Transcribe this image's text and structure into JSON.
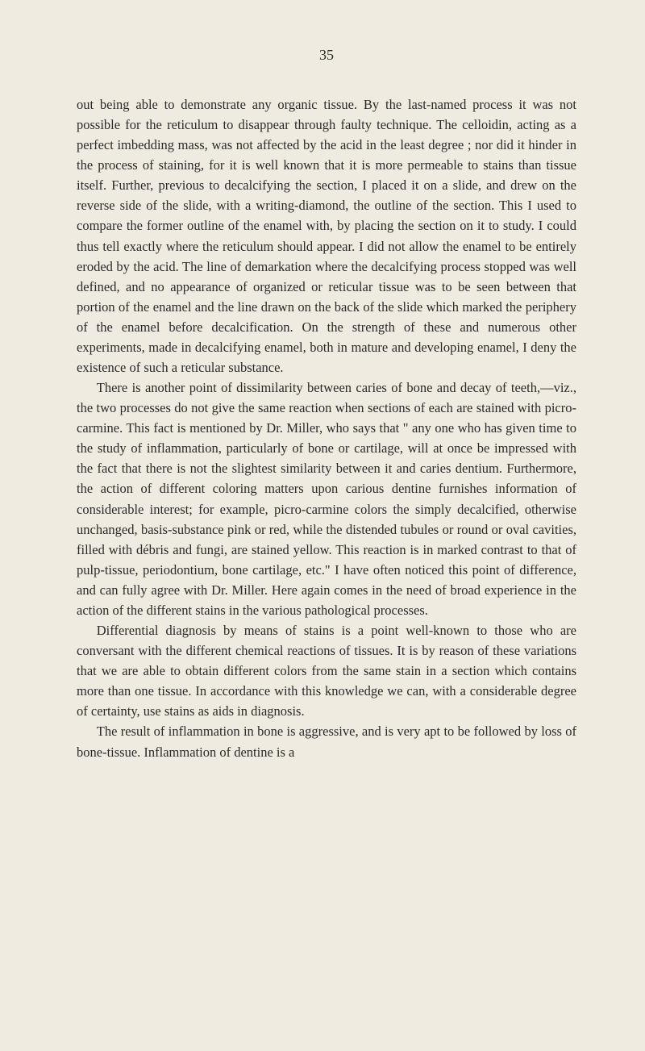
{
  "page": {
    "number": "35",
    "background_color": "#f0ebe1",
    "text_color": "#2a2a2a",
    "font_family": "Georgia, 'Times New Roman', serif",
    "font_size": 16.5,
    "line_height": 1.52
  },
  "paragraphs": {
    "p1": "out being able to demonstrate any organic tissue. By the last-named process it was not possible for the reticulum to disappear through faulty technique. The celloidin, acting as a perfect imbedding mass, was not affected by the acid in the least degree ; nor did it hinder in the process of staining, for it is well known that it is more permeable to stains than tissue itself. Further, previous to decalcifying the section, I placed it on a slide, and drew on the reverse side of the slide, with a writing-diamond, the outline of the section. This I used to compare the former outline of the enamel with, by placing the section on it to study. I could thus tell exactly where the reticulum should appear. I did not allow the enamel to be entirely eroded by the acid. The line of demarkation where the decalcifying process stopped was well defined, and no appearance of organized or reticular tissue was to be seen between that portion of the enamel and the line drawn on the back of the slide which marked the periphery of the enamel before decalcification. On the strength of these and numerous other experiments, made in decalcifying enamel, both in mature and developing enamel, I deny the existence of such a reticular substance.",
    "p2": "There is another point of dissimilarity between caries of bone and decay of teeth,—viz., the two processes do not give the same reaction when sections of each are stained with picro-carmine. This fact is mentioned by Dr. Miller, who says that \" any one who has given time to the study of inflammation, particularly of bone or cartilage, will at once be impressed with the fact that there is not the slightest similarity between it and caries dentium. Furthermore, the action of different coloring matters upon carious dentine furnishes information of considerable interest; for example, picro-carmine colors the simply decalcified, otherwise unchanged, basis-substance pink or red, while the distended tubules or round or oval cavities, filled with débris and fungi, are stained yellow. This reaction is in marked contrast to that of pulp-tissue, periodontium, bone cartilage, etc.\" I have often noticed this point of difference, and can fully agree with Dr. Miller. Here again comes in the need of broad experience in the action of the different stains in the various pathological processes.",
    "p3": "Differential diagnosis by means of stains is a point well-known to those who are conversant with the different chemical reactions of tissues. It is by reason of these variations that we are able to obtain different colors from the same stain in a section which contains more than one tissue. In accordance with this knowledge we can, with a considerable degree of certainty, use stains as aids in diagnosis.",
    "p4": "The result of inflammation in bone is aggressive, and is very apt to be followed by loss of bone-tissue. Inflammation of dentine is a"
  }
}
